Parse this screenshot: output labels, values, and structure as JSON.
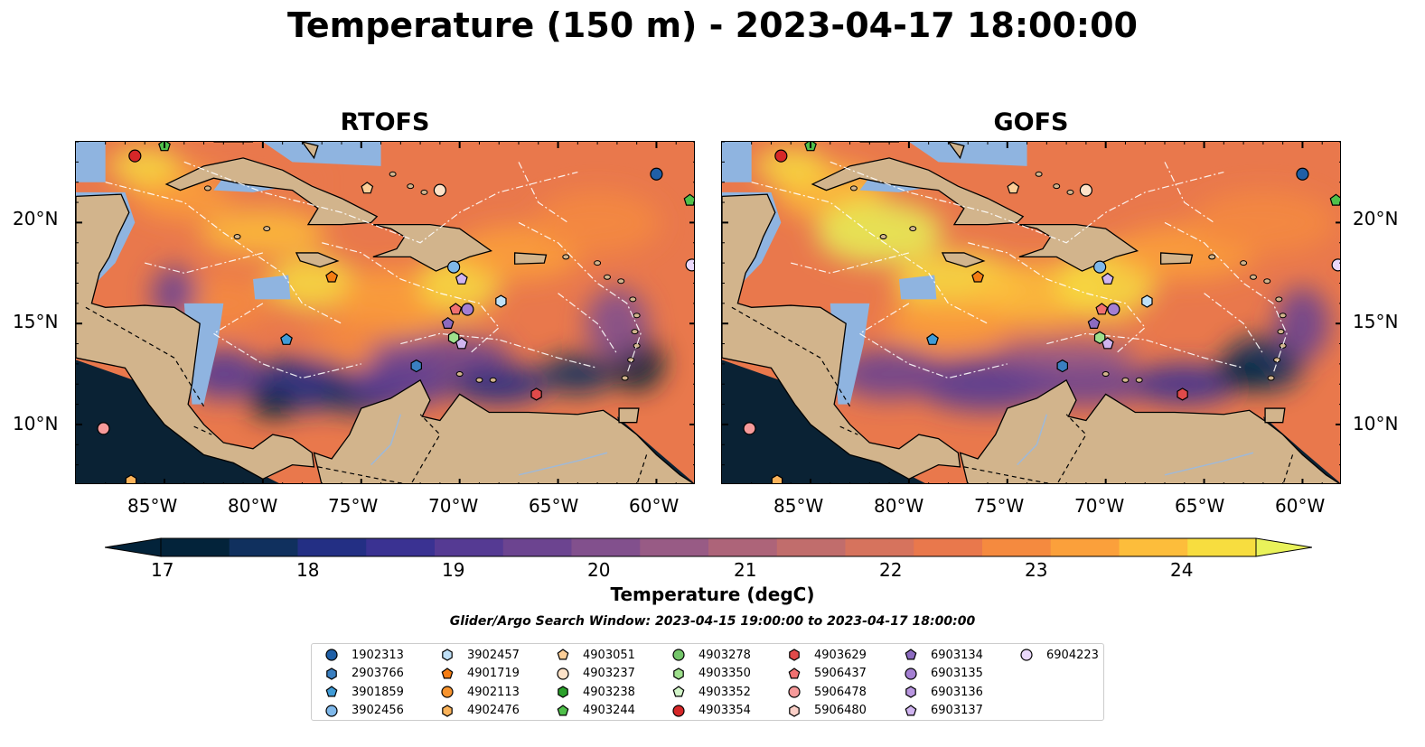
{
  "title": "Temperature (150 m) - 2023-04-17 18:00:00",
  "panels": [
    {
      "title": "RTOFS"
    },
    {
      "title": "GOFS"
    }
  ],
  "lat_labels": [
    "20°N",
    "15°N",
    "10°N"
  ],
  "lon_labels": [
    "85°W",
    "80°W",
    "75°W",
    "70°W",
    "65°W",
    "60°W"
  ],
  "colorbar": {
    "label": "Temperature (degC)",
    "ticks": [
      "17",
      "18",
      "19",
      "20",
      "21",
      "22",
      "23",
      "24"
    ],
    "min": 17,
    "max": 24.5,
    "step": 0.5,
    "colors": [
      "#03233a",
      "#10305e",
      "#232f84",
      "#3a3292",
      "#553a93",
      "#6c4490",
      "#82508d",
      "#985b85",
      "#ad6479",
      "#c16d6c",
      "#d6735d",
      "#e9784c",
      "#f58a3f",
      "#fba03b",
      "#fdbd3b",
      "#f7dd3f"
    ],
    "extend_low": "#03233a",
    "extend_high": "#e9f25a"
  },
  "search_window": "Glider/Argo Search Window: 2023-04-15 19:00:00 to 2023-04-17 18:00:00",
  "colors": {
    "land": "#d2b48c",
    "shelf": "#8fb4e0",
    "deep": "#0a2234"
  },
  "legend": [
    {
      "id": "1902313",
      "marker": "circle",
      "color": "#1f5fa6"
    },
    {
      "id": "2903766",
      "marker": "hexagon",
      "color": "#3a7fc0"
    },
    {
      "id": "3901859",
      "marker": "pentagon",
      "color": "#3f9bd6"
    },
    {
      "id": "3902456",
      "marker": "circle",
      "color": "#7fb8ea"
    },
    {
      "id": "3902457",
      "marker": "hexagon",
      "color": "#bfe0f7"
    },
    {
      "id": "4901719",
      "marker": "pentagon",
      "color": "#f57c12"
    },
    {
      "id": "4902113",
      "marker": "circle",
      "color": "#f7932e"
    },
    {
      "id": "4902476",
      "marker": "hexagon",
      "color": "#fbb35a"
    },
    {
      "id": "4903051",
      "marker": "pentagon",
      "color": "#fdcf98"
    },
    {
      "id": "4903237",
      "marker": "circle",
      "color": "#fde2c8"
    },
    {
      "id": "4903238",
      "marker": "hexagon",
      "color": "#2aa02a"
    },
    {
      "id": "4903244",
      "marker": "pentagon",
      "color": "#4fc04a"
    },
    {
      "id": "4903278",
      "marker": "circle",
      "color": "#74c66a"
    },
    {
      "id": "4903350",
      "marker": "hexagon",
      "color": "#9ee08c"
    },
    {
      "id": "4903352",
      "marker": "pentagon",
      "color": "#d2f5c8"
    },
    {
      "id": "4903354",
      "marker": "circle",
      "color": "#d62728"
    },
    {
      "id": "4903629",
      "marker": "hexagon",
      "color": "#e04a4a"
    },
    {
      "id": "5906437",
      "marker": "pentagon",
      "color": "#f07070"
    },
    {
      "id": "5906478",
      "marker": "circle",
      "color": "#f79a9a"
    },
    {
      "id": "5906480",
      "marker": "hexagon",
      "color": "#fbd0c8"
    },
    {
      "id": "6903134",
      "marker": "pentagon",
      "color": "#8c6bc0"
    },
    {
      "id": "6903135",
      "marker": "circle",
      "color": "#a47fd2"
    },
    {
      "id": "6903136",
      "marker": "hexagon",
      "color": "#b996e0"
    },
    {
      "id": "6903137",
      "marker": "pentagon",
      "color": "#d0b4f0"
    },
    {
      "id": "6904223",
      "marker": "circle",
      "color": "#ead8fb"
    }
  ],
  "floats_on_map": [
    {
      "id": "4903354",
      "lon": -86.5,
      "lat": 23.3
    },
    {
      "id": "4903244",
      "lon": -85.0,
      "lat": 23.8
    },
    {
      "id": "1902313",
      "lon": -60.0,
      "lat": 22.4
    },
    {
      "id": "4903244",
      "lon": -58.3,
      "lat": 21.1
    },
    {
      "id": "4903051",
      "lon": -74.7,
      "lat": 21.7
    },
    {
      "id": "4903237",
      "lon": -71.0,
      "lat": 21.6
    },
    {
      "id": "6904223",
      "lon": -58.2,
      "lat": 17.9
    },
    {
      "id": "4901719",
      "lon": -76.5,
      "lat": 17.3
    },
    {
      "id": "3902456",
      "lon": -70.3,
      "lat": 17.8
    },
    {
      "id": "6903137",
      "lon": -69.9,
      "lat": 17.2
    },
    {
      "id": "3902457",
      "lon": -67.9,
      "lat": 16.1
    },
    {
      "id": "5906437",
      "lon": -70.2,
      "lat": 15.7
    },
    {
      "id": "6903135",
      "lon": -69.6,
      "lat": 15.7
    },
    {
      "id": "6903134",
      "lon": -70.6,
      "lat": 15.0
    },
    {
      "id": "4903350",
      "lon": -70.3,
      "lat": 14.3
    },
    {
      "id": "6903137",
      "lon": -69.9,
      "lat": 14.0
    },
    {
      "id": "3901859",
      "lon": -78.8,
      "lat": 14.2
    },
    {
      "id": "2903766",
      "lon": -72.2,
      "lat": 12.9
    },
    {
      "id": "4903629",
      "lon": -66.1,
      "lat": 11.5
    },
    {
      "id": "5906478",
      "lon": -88.1,
      "lat": 9.8
    },
    {
      "id": "4902476",
      "lon": -86.7,
      "lat": 7.2
    }
  ]
}
